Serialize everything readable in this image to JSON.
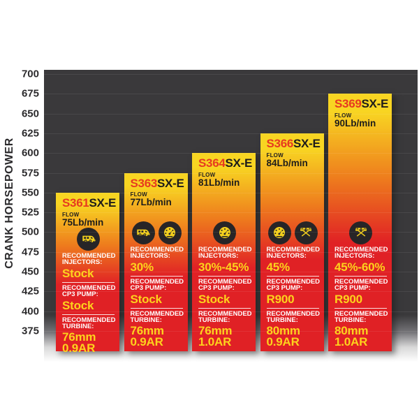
{
  "chart_data": {
    "type": "bar",
    "title": "",
    "xlabel": "",
    "ylabel": "CRANK HORSEPOWER",
    "y_ticks": [
      700,
      675,
      650,
      625,
      600,
      575,
      550,
      525,
      500,
      475,
      450,
      425,
      400,
      375
    ],
    "ylim": [
      350,
      705
    ],
    "grid": true,
    "legend": false,
    "labels": {
      "flow": "FLOW",
      "injectors": "RECOMMENDED INJECTORS:",
      "cp3_pump": "RECOMMENDED CP3 PUMP:",
      "turbine": "RECOMMENDED TURBINE:"
    },
    "bars": [
      {
        "model_prefix": "S361",
        "model_suffix": "SX-E",
        "flow": "75Lb/min",
        "hp": 550,
        "icons": [
          "towing-icon"
        ],
        "injectors": "Stock",
        "cp3_pump": "Stock",
        "turbine_wheel": "76mm",
        "turbine_ar": "0.9AR"
      },
      {
        "model_prefix": "S363",
        "model_suffix": "SX-E",
        "flow": "77Lb/min",
        "hp": 575,
        "icons": [
          "towing-icon",
          "gauge-icon"
        ],
        "injectors": "30%",
        "cp3_pump": "Stock",
        "turbine_wheel": "76mm",
        "turbine_ar": "0.9AR"
      },
      {
        "model_prefix": "S364",
        "model_suffix": "SX-E",
        "flow": "81Lb/min",
        "hp": 600,
        "icons": [
          "gauge-icon"
        ],
        "injectors": "30%-45%",
        "cp3_pump": "Stock",
        "turbine_wheel": "76mm",
        "turbine_ar": "1.0AR"
      },
      {
        "model_prefix": "S366",
        "model_suffix": "SX-E",
        "flow": "84Lb/min",
        "hp": 625,
        "icons": [
          "gauge-icon",
          "flags-icon"
        ],
        "injectors": "45%",
        "cp3_pump": "R900",
        "turbine_wheel": "80mm",
        "turbine_ar": "0.9AR"
      },
      {
        "model_prefix": "S369",
        "model_suffix": "SX-E",
        "flow": "90Lb/min",
        "hp": 675,
        "icons": [
          "flags-icon"
        ],
        "injectors": "45%-60%",
        "cp3_pump": "R900",
        "turbine_wheel": "80mm",
        "turbine_ar": "1.0AR"
      }
    ]
  },
  "colors": {
    "page_bg": "#ffffff",
    "plot_bg": "#3a393b",
    "axis_text": "#2c2b2d",
    "bar_yellow": "#f8d522",
    "bar_orange": "#ee7c1d",
    "bar_red": "#e02125",
    "model_red": "#e73a20",
    "model_black": "#1e1c1b",
    "rec_label": "#ffffff",
    "rec_value": "#fdd21c",
    "icon_bg": "#272527",
    "icon_glyph": "#f2cf1c"
  }
}
